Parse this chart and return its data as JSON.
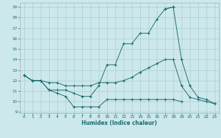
{
  "xlabel": "Humidex (Indice chaleur)",
  "bg_color": "#cce8ec",
  "grid_color": "#aacccc",
  "line_color": "#1a6b6b",
  "xlim": [
    -0.5,
    23.5
  ],
  "ylim": [
    8.9,
    19.4
  ],
  "yticks": [
    9,
    10,
    11,
    12,
    13,
    14,
    15,
    16,
    17,
    18,
    19
  ],
  "xticks": [
    0,
    1,
    2,
    3,
    4,
    5,
    6,
    7,
    8,
    9,
    10,
    11,
    12,
    13,
    14,
    15,
    16,
    17,
    18,
    19,
    20,
    21,
    22,
    23
  ],
  "curve1_x": [
    0,
    1,
    2,
    3,
    4,
    5,
    6,
    7,
    8,
    9,
    10,
    11,
    12,
    13,
    14,
    15,
    16,
    17,
    18
  ],
  "curve1_y": [
    12.5,
    12.0,
    12.0,
    11.1,
    11.1,
    11.1,
    10.8,
    10.5,
    10.5,
    11.5,
    13.5,
    13.5,
    15.5,
    15.5,
    16.5,
    16.5,
    17.8,
    18.8,
    19.0
  ],
  "curve2_x": [
    0,
    1,
    2,
    3,
    4,
    5,
    6,
    7,
    8,
    9,
    10,
    11,
    12,
    13,
    14,
    15,
    16,
    17,
    18,
    19
  ],
  "curve2_y": [
    12.5,
    12.0,
    12.0,
    11.1,
    10.8,
    10.5,
    9.5,
    9.5,
    9.5,
    9.5,
    10.2,
    10.2,
    10.2,
    10.2,
    10.2,
    10.2,
    10.2,
    10.2,
    10.2,
    10.0
  ],
  "curve3_x": [
    0,
    1,
    2,
    3,
    4,
    5,
    6,
    7,
    8,
    9,
    10,
    11,
    12,
    13,
    14,
    15,
    16,
    17,
    18,
    19,
    20,
    21,
    22,
    23
  ],
  "curve3_y": [
    12.5,
    12.0,
    12.0,
    11.8,
    11.8,
    11.5,
    11.5,
    11.5,
    11.5,
    11.8,
    11.8,
    11.8,
    12.0,
    12.3,
    12.8,
    13.2,
    13.6,
    14.0,
    14.0,
    11.5,
    10.4,
    10.2,
    10.0,
    9.8
  ],
  "curve4_x": [
    17,
    18,
    19,
    20,
    21,
    22,
    23
  ],
  "curve4_y": [
    18.8,
    19.0,
    14.0,
    11.5,
    10.4,
    10.2,
    9.8
  ]
}
